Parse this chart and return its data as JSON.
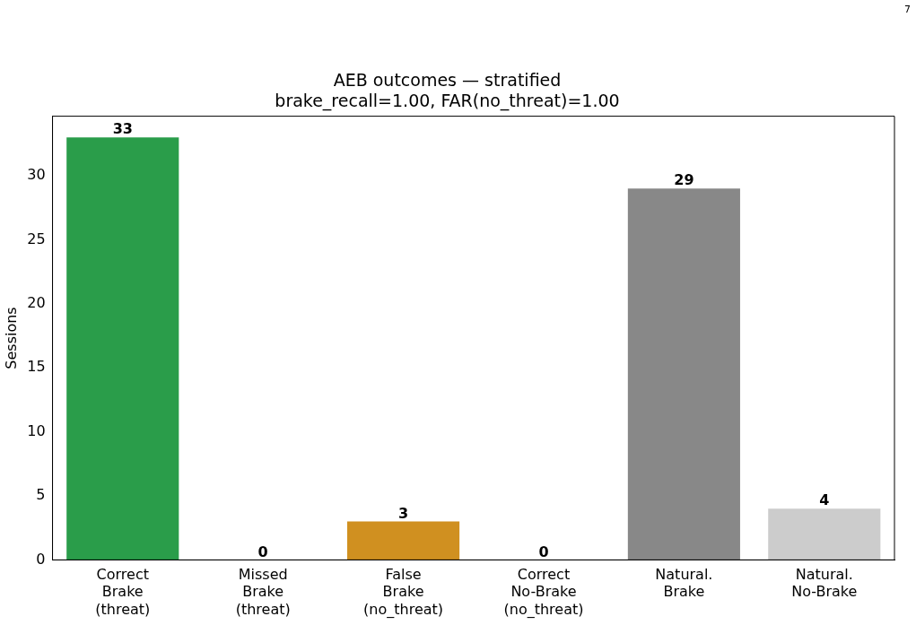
{
  "chart_data": {
    "type": "bar",
    "title": "AEB outcomes — stratified",
    "subtitle": "brake_recall=1.00, FAR(no_threat)=1.00",
    "ylabel": "Sessions",
    "categories": [
      "Correct\nBrake\n(threat)",
      "Missed\nBrake\n(threat)",
      "False\nBrake\n(no_threat)",
      "Correct\nNo-Brake\n(no_threat)",
      "Natural.\nBrake",
      "Natural.\nNo-Brake"
    ],
    "values": [
      33,
      0,
      3,
      0,
      29,
      4
    ],
    "colors": [
      "#2a9d4a",
      "#d62728",
      "#d09020",
      "#1f77b4",
      "#888888",
      "#cccccc"
    ],
    "ylim": [
      0,
      34.65
    ],
    "yticks": [
      0,
      5,
      10,
      15,
      20,
      25,
      30
    ],
    "grid": false,
    "legend": false,
    "data_labels": true,
    "annotations": [
      "7"
    ]
  }
}
